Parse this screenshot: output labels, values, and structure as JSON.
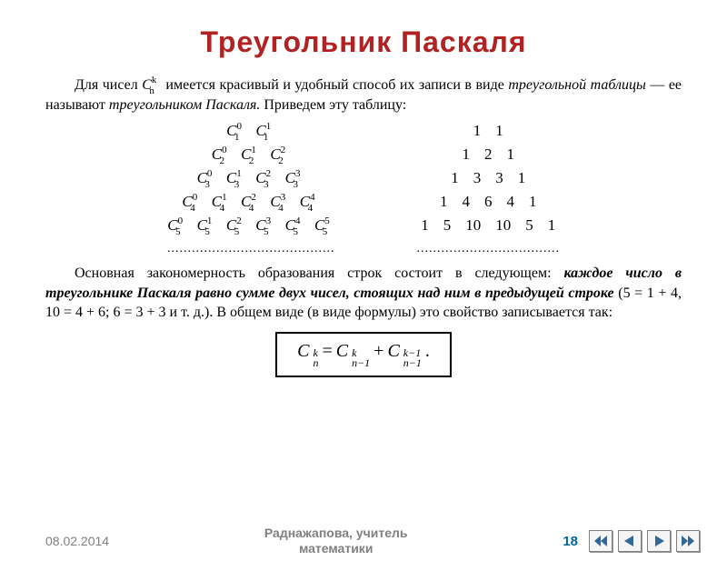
{
  "title": {
    "text": "Треугольник Паскаля",
    "color": "#b22222",
    "fontsize": 32
  },
  "intro": {
    "pre": "Для чисел ",
    "symbol": "C",
    "sup": "k",
    "sub": "n",
    "post": " имеется красивый и удобный способ их записи в виде ",
    "ital1": "треугольной таблицы",
    "mid": " — ее называют ",
    "ital2": "треугольником Паскаля.",
    "tail": " Приведем эту таблицу:"
  },
  "triangle_symbols": {
    "rows": [
      [
        {
          "sup": "0",
          "sub": "1"
        },
        {
          "sup": "1",
          "sub": "1"
        }
      ],
      [
        {
          "sup": "0",
          "sub": "2"
        },
        {
          "sup": "1",
          "sub": "2"
        },
        {
          "sup": "2",
          "sub": "2"
        }
      ],
      [
        {
          "sup": "0",
          "sub": "3"
        },
        {
          "sup": "1",
          "sub": "3"
        },
        {
          "sup": "2",
          "sub": "3"
        },
        {
          "sup": "3",
          "sub": "3"
        }
      ],
      [
        {
          "sup": "0",
          "sub": "4"
        },
        {
          "sup": "1",
          "sub": "4"
        },
        {
          "sup": "2",
          "sub": "4"
        },
        {
          "sup": "3",
          "sub": "4"
        },
        {
          "sup": "4",
          "sub": "4"
        }
      ],
      [
        {
          "sup": "0",
          "sub": "5"
        },
        {
          "sup": "1",
          "sub": "5"
        },
        {
          "sup": "2",
          "sub": "5"
        },
        {
          "sup": "3",
          "sub": "5"
        },
        {
          "sup": "4",
          "sub": "5"
        },
        {
          "sup": "5",
          "sub": "5"
        }
      ]
    ],
    "dots": "........................................."
  },
  "triangle_numbers": {
    "rows": [
      [
        "1",
        "1"
      ],
      [
        "1",
        "2",
        "1"
      ],
      [
        "1",
        "3",
        "3",
        "1"
      ],
      [
        "1",
        "4",
        "6",
        "4",
        "1"
      ],
      [
        "1",
        "5",
        "10",
        "10",
        "5",
        "1"
      ]
    ],
    "dots": "..................................."
  },
  "para2": {
    "p1": "Основная закономерность образования строк состоит в следующем: ",
    "bold": "каждое число в треугольнике Паскаля равно сумме двух чисел, стоящих над ним в предыдущей строке",
    "p2": " (5 = 1 + 4, 10 = 4 + 6; 6 = 3 + 3 и т. д.). В общем виде (в виде формулы) это свойство записывается так:"
  },
  "formula": {
    "lhs_sup": "k",
    "lhs_sub": "n",
    "eq": " = ",
    "r1_sup": "k",
    "r1_sub": "n−1",
    "plus": " + ",
    "r2_sup": "k−1",
    "r2_sub": "n−1",
    "dot": "."
  },
  "footer": {
    "date": "08.02.2014",
    "author_l1": "Раднажапова, учитель",
    "author_l2": "математики",
    "page": "18",
    "page_color": "#006699"
  },
  "nav_colors": {
    "fill": "#336699",
    "stroke": "#808080"
  }
}
